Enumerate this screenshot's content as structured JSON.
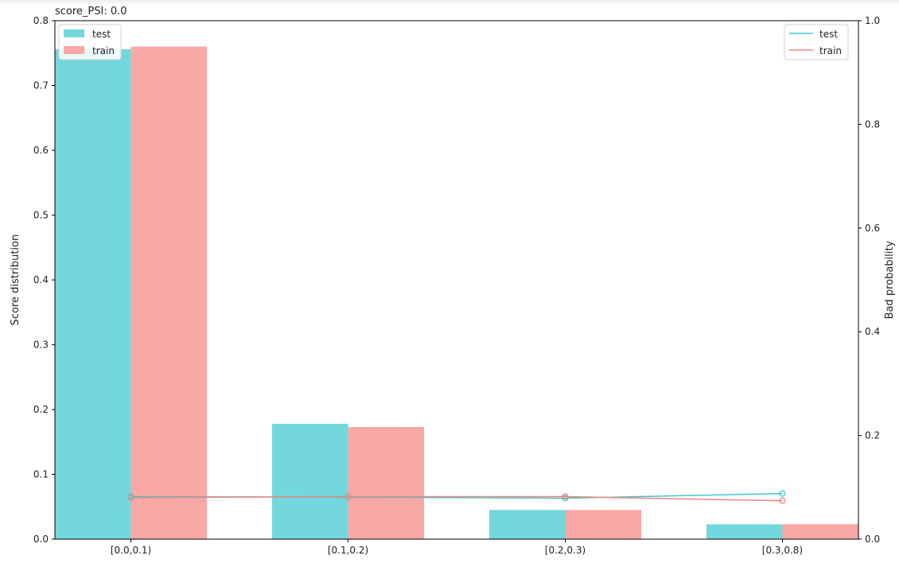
{
  "chart_data": {
    "type": "bar",
    "title": "score_PSI: 0.0",
    "categories": [
      "[0.0,0.1)",
      "[0.1,0.2)",
      "[0.2,0.3)",
      "[0.3,0.8)"
    ],
    "bar_series": [
      {
        "name": "test",
        "color": "#72d8dd",
        "values": [
          0.756,
          0.178,
          0.045,
          0.023
        ]
      },
      {
        "name": "train",
        "color": "#f9a8a5",
        "values": [
          0.76,
          0.173,
          0.045,
          0.023
        ]
      }
    ],
    "line_series": [
      {
        "name": "test",
        "color": "#3ec9cf",
        "values": [
          0.082,
          0.081,
          0.079,
          0.088
        ]
      },
      {
        "name": "train",
        "color": "#f4837f",
        "values": [
          0.08,
          0.082,
          0.082,
          0.074
        ]
      }
    ],
    "ylabel": "Score distribution",
    "ylim": [
      0,
      0.8
    ],
    "yticks": [
      "0.0",
      "0.1",
      "0.2",
      "0.3",
      "0.4",
      "0.5",
      "0.6",
      "0.7",
      "0.8"
    ],
    "y2label": "Bad probability",
    "y2lim": [
      0,
      1.0
    ],
    "y2ticks": [
      "0.0",
      "0.2",
      "0.4",
      "0.6",
      "0.8",
      "1.0"
    ],
    "legend_bars_placement": "upper-left",
    "legend_lines_placement": "upper-right",
    "grid": false
  }
}
